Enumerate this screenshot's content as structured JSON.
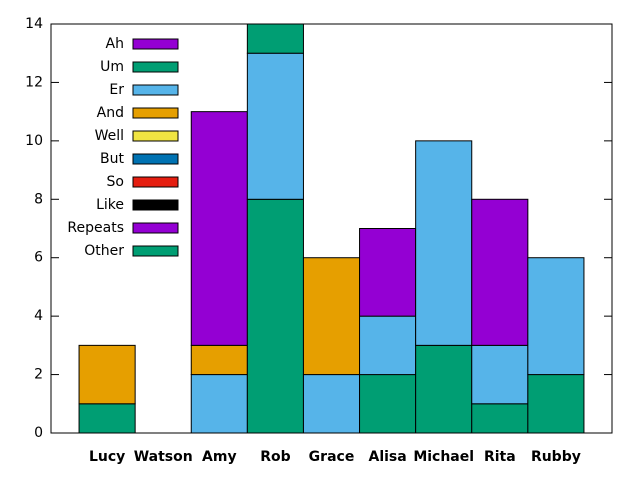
{
  "chart_data": {
    "type": "stacked_bar",
    "categories": [
      "Lucy",
      "Watson",
      "Amy",
      "Rob",
      "Grace",
      "Alisa",
      "Michael",
      "Rita",
      "Rubby"
    ],
    "series": [
      {
        "name": "Ah",
        "color": "#9400d3",
        "values": [
          0,
          0,
          0,
          0,
          0,
          0,
          0,
          0,
          0
        ]
      },
      {
        "name": "Um",
        "color": "#009e73",
        "values": [
          1,
          0,
          0,
          8,
          0,
          2,
          3,
          1,
          2
        ]
      },
      {
        "name": "Er",
        "color": "#56b4e9",
        "values": [
          0,
          0,
          2,
          5,
          2,
          2,
          7,
          2,
          4
        ]
      },
      {
        "name": "And",
        "color": "#e69f00",
        "values": [
          2,
          0,
          1,
          0,
          4,
          0,
          0,
          0,
          0
        ]
      },
      {
        "name": "Well",
        "color": "#f0e442",
        "values": [
          0,
          0,
          0,
          0,
          0,
          0,
          0,
          0,
          0
        ]
      },
      {
        "name": "But",
        "color": "#0072b2",
        "values": [
          0,
          0,
          0,
          0,
          0,
          0,
          0,
          0,
          0
        ]
      },
      {
        "name": "So",
        "color": "#e51e10",
        "values": [
          0,
          0,
          0,
          0,
          0,
          0,
          0,
          0,
          0
        ]
      },
      {
        "name": "Like",
        "color": "#000000",
        "values": [
          0,
          0,
          0,
          0,
          0,
          0,
          0,
          0,
          0
        ]
      },
      {
        "name": "Repeats",
        "color": "#9400d3",
        "values": [
          0,
          0,
          8,
          0,
          0,
          3,
          0,
          5,
          0
        ]
      },
      {
        "name": "Other",
        "color": "#009e73",
        "values": [
          0,
          0,
          0,
          1,
          0,
          0,
          0,
          0,
          0
        ]
      }
    ],
    "ylim": [
      0,
      14
    ],
    "yticks": [
      0,
      2,
      4,
      6,
      8,
      10,
      12,
      14
    ],
    "legend": "top-left"
  }
}
